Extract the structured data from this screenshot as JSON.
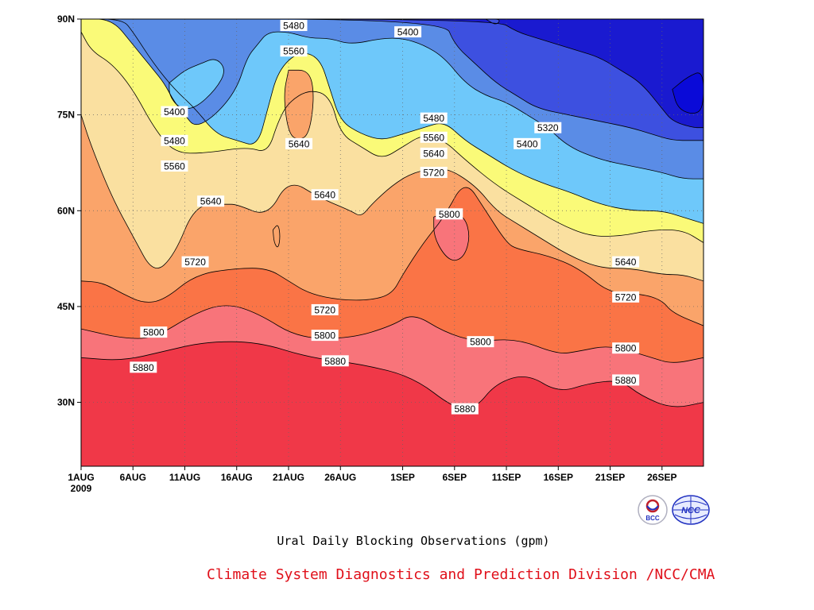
{
  "chart_data": {
    "type": "heatmap",
    "subtype": "filled-contour",
    "title": "Ural Daily Blocking Observations (gpm)",
    "credit": "Climate System Diagnostics and Prediction Division /NCC/CMA",
    "x_ticks": [
      {
        "day": 0,
        "label": "1AUG",
        "sub": "2009"
      },
      {
        "day": 5,
        "label": "6AUG"
      },
      {
        "day": 10,
        "label": "11AUG"
      },
      {
        "day": 15,
        "label": "16AUG"
      },
      {
        "day": 20,
        "label": "21AUG"
      },
      {
        "day": 25,
        "label": "26AUG"
      },
      {
        "day": 31,
        "label": "1SEP"
      },
      {
        "day": 36,
        "label": "6SEP"
      },
      {
        "day": 41,
        "label": "11SEP"
      },
      {
        "day": 46,
        "label": "16SEP"
      },
      {
        "day": 51,
        "label": "21SEP"
      },
      {
        "day": 56,
        "label": "26SEP"
      }
    ],
    "y_ticks": [
      {
        "lat": 90,
        "label": "90N"
      },
      {
        "lat": 75,
        "label": "75N"
      },
      {
        "lat": 60,
        "label": "60N"
      },
      {
        "lat": 45,
        "label": "45N"
      },
      {
        "lat": 30,
        "label": "30N"
      }
    ],
    "xlim_days": [
      0,
      60
    ],
    "ylim_lat": [
      20,
      90
    ],
    "grid": "dotted",
    "levels": [
      5240,
      5320,
      5400,
      5480,
      5560,
      5640,
      5720,
      5800,
      5880
    ],
    "colors": [
      "#1a1ad0",
      "#3d50e0",
      "#5a8ce6",
      "#6ec8fa",
      "#fafa78",
      "#fae0a0",
      "#faa46a",
      "#fa7446",
      "#f8747a",
      "#f03848"
    ],
    "boundaries": [
      {
        "level": 5880,
        "points": [
          [
            0,
            37
          ],
          [
            4,
            36.5
          ],
          [
            8,
            38
          ],
          [
            12,
            39.5
          ],
          [
            17,
            39.5
          ],
          [
            22,
            37
          ],
          [
            27,
            36
          ],
          [
            32,
            34
          ],
          [
            36,
            29
          ],
          [
            38,
            29
          ],
          [
            40,
            33
          ],
          [
            43,
            34.5
          ],
          [
            46,
            31.5
          ],
          [
            49,
            33
          ],
          [
            52,
            33.5
          ],
          [
            54,
            31
          ],
          [
            57,
            29
          ],
          [
            60,
            30
          ]
        ]
      },
      {
        "level": 5800,
        "points": [
          [
            0,
            41.5
          ],
          [
            4,
            40
          ],
          [
            7,
            40
          ],
          [
            11,
            44
          ],
          [
            14,
            45.5
          ],
          [
            17,
            44
          ],
          [
            21,
            40
          ],
          [
            26,
            40
          ],
          [
            30,
            42
          ],
          [
            32,
            44
          ],
          [
            35,
            41
          ],
          [
            38,
            39.5
          ],
          [
            42,
            40
          ],
          [
            46,
            37.5
          ],
          [
            48,
            38
          ],
          [
            51,
            39
          ],
          [
            55,
            37
          ],
          [
            57,
            36
          ],
          [
            60,
            37
          ]
        ]
      },
      {
        "level": 5720,
        "points": [
          [
            0,
            49
          ],
          [
            2,
            48.8
          ],
          [
            4,
            47
          ],
          [
            6,
            45.5
          ],
          [
            8,
            46
          ],
          [
            11,
            50
          ],
          [
            15,
            51
          ],
          [
            18,
            51
          ],
          [
            20,
            49
          ],
          [
            22,
            47
          ],
          [
            25,
            46
          ],
          [
            28,
            46
          ],
          [
            30,
            47
          ],
          [
            31,
            50
          ],
          [
            33,
            55
          ],
          [
            35,
            59
          ],
          [
            37,
            65
          ],
          [
            39,
            60
          ],
          [
            41,
            55
          ],
          [
            42,
            54
          ],
          [
            45,
            53
          ],
          [
            48,
            51
          ],
          [
            51,
            47
          ],
          [
            54,
            47
          ],
          [
            56,
            46
          ],
          [
            57,
            44
          ],
          [
            60,
            42
          ]
        ]
      },
      {
        "level": 5640,
        "points": [
          [
            0,
            75
          ],
          [
            1,
            70
          ],
          [
            3,
            62
          ],
          [
            5,
            56
          ],
          [
            7,
            50
          ],
          [
            9,
            53
          ],
          [
            11,
            61
          ],
          [
            14,
            61
          ],
          [
            15,
            61
          ],
          [
            18,
            59
          ],
          [
            20,
            65
          ],
          [
            23,
            62
          ],
          [
            26,
            60
          ],
          [
            27,
            59
          ],
          [
            28,
            61
          ],
          [
            30,
            64
          ],
          [
            32,
            66
          ],
          [
            35,
            67
          ],
          [
            38,
            64
          ],
          [
            40,
            60
          ],
          [
            42,
            58
          ],
          [
            44,
            56
          ],
          [
            47,
            53
          ],
          [
            50,
            51
          ],
          [
            53,
            51
          ],
          [
            56,
            50
          ],
          [
            58,
            50
          ],
          [
            60,
            49
          ]
        ]
      },
      {
        "level": 5560,
        "points": [
          [
            0,
            88
          ],
          [
            1,
            85
          ],
          [
            3,
            83
          ],
          [
            5,
            79
          ],
          [
            7,
            73
          ],
          [
            9,
            69
          ],
          [
            12,
            69
          ],
          [
            16,
            70
          ],
          [
            18,
            69
          ],
          [
            19,
            74
          ],
          [
            20,
            77
          ],
          [
            22,
            79
          ],
          [
            24,
            78
          ],
          [
            25,
            72
          ],
          [
            27,
            70
          ],
          [
            29,
            68
          ],
          [
            31,
            70
          ],
          [
            33,
            72
          ],
          [
            35,
            71
          ],
          [
            37,
            68
          ],
          [
            40,
            64
          ],
          [
            43,
            61
          ],
          [
            46,
            58
          ],
          [
            49,
            56
          ],
          [
            52,
            56
          ],
          [
            55,
            57
          ],
          [
            58,
            57
          ],
          [
            60,
            55
          ]
        ]
      },
      {
        "level": 5480,
        "points": [
          [
            0,
            90
          ],
          [
            4,
            90
          ],
          [
            5,
            88
          ],
          [
            7,
            83
          ],
          [
            9,
            79
          ],
          [
            11,
            76
          ],
          [
            13,
            72
          ],
          [
            15,
            71
          ],
          [
            17,
            70
          ],
          [
            18,
            76
          ],
          [
            19,
            82
          ],
          [
            21,
            85
          ],
          [
            23,
            84
          ],
          [
            24,
            79
          ],
          [
            25,
            74
          ],
          [
            27,
            72
          ],
          [
            29,
            71
          ],
          [
            31,
            72
          ],
          [
            33,
            73
          ],
          [
            35,
            74
          ],
          [
            37,
            71
          ],
          [
            39,
            69
          ],
          [
            42,
            66
          ],
          [
            45,
            64
          ],
          [
            47,
            63
          ],
          [
            50,
            61
          ],
          [
            53,
            60
          ],
          [
            56,
            60
          ],
          [
            58,
            59
          ],
          [
            60,
            58
          ]
        ]
      },
      {
        "level": 5400,
        "points": [
          [
            0,
            90
          ],
          [
            3,
            90
          ],
          [
            5,
            86
          ],
          [
            7,
            82
          ],
          [
            8,
            80
          ],
          [
            9,
            77
          ],
          [
            10,
            75
          ],
          [
            11,
            73
          ],
          [
            13,
            75
          ],
          [
            15,
            79
          ],
          [
            16,
            84
          ],
          [
            17,
            86
          ],
          [
            18,
            88
          ],
          [
            20,
            88
          ],
          [
            22,
            87
          ],
          [
            24,
            87
          ],
          [
            26,
            86
          ],
          [
            29,
            87
          ],
          [
            31,
            87
          ],
          [
            33,
            86
          ],
          [
            35,
            84
          ],
          [
            37,
            80
          ],
          [
            39,
            78
          ],
          [
            41,
            77
          ],
          [
            43,
            75
          ],
          [
            45,
            73
          ],
          [
            47,
            70
          ],
          [
            50,
            68
          ],
          [
            53,
            67
          ],
          [
            56,
            66
          ],
          [
            58,
            65
          ],
          [
            60,
            65
          ]
        ]
      },
      {
        "level": 5320,
        "points": [
          [
            0,
            90
          ],
          [
            35,
            90
          ],
          [
            36,
            86
          ],
          [
            38,
            83
          ],
          [
            40,
            80
          ],
          [
            42,
            78
          ],
          [
            44,
            76
          ],
          [
            47,
            75
          ],
          [
            50,
            74
          ],
          [
            53,
            73
          ],
          [
            55,
            72
          ],
          [
            57,
            71
          ],
          [
            59,
            71
          ],
          [
            60,
            71
          ]
        ]
      },
      {
        "level": 5240,
        "points": [
          [
            0,
            90
          ],
          [
            40,
            90
          ],
          [
            42,
            88
          ],
          [
            44,
            87
          ],
          [
            46,
            86
          ],
          [
            48,
            85
          ],
          [
            50,
            84
          ],
          [
            52,
            82
          ],
          [
            54,
            80
          ],
          [
            56,
            76
          ],
          [
            57,
            74
          ],
          [
            59,
            73
          ],
          [
            60,
            73
          ]
        ]
      }
    ],
    "islands": [
      {
        "level": 5880,
        "points": [
          [
            34,
            59
          ],
          [
            35.5,
            60
          ],
          [
            37,
            59
          ],
          [
            37.5,
            56
          ],
          [
            37,
            53
          ],
          [
            36,
            52
          ],
          [
            35,
            53
          ],
          [
            34,
            56
          ],
          [
            34,
            59
          ]
        ]
      },
      {
        "level": 5720,
        "points": [
          [
            20,
            82
          ],
          [
            22,
            82
          ],
          [
            22.5,
            78
          ],
          [
            22,
            72
          ],
          [
            21,
            71
          ],
          [
            20,
            72
          ],
          [
            19.5,
            78
          ],
          [
            20,
            82
          ]
        ]
      },
      {
        "level": 5480,
        "points": [
          [
            8.5,
            80
          ],
          [
            10,
            82
          ],
          [
            11.5,
            83
          ],
          [
            13,
            84
          ],
          [
            14,
            82
          ],
          [
            13,
            79
          ],
          [
            11,
            76
          ],
          [
            9.5,
            76
          ],
          [
            8.5,
            78
          ],
          [
            8.5,
            80
          ]
        ]
      },
      {
        "level": 5320,
        "points": [
          [
            39,
            90
          ],
          [
            40.5,
            90
          ],
          [
            40,
            89
          ],
          [
            39,
            90
          ]
        ]
      },
      {
        "level": 5160,
        "points": [
          [
            57,
            79
          ],
          [
            58.5,
            81
          ],
          [
            60,
            82
          ],
          [
            60,
            76
          ],
          [
            59,
            75
          ],
          [
            57.5,
            76
          ],
          [
            57,
            79
          ]
        ]
      },
      {
        "level": 5720,
        "points": [
          [
            18.5,
            57
          ],
          [
            19,
            58
          ],
          [
            19.2,
            56
          ],
          [
            19,
            54
          ],
          [
            18.6,
            55
          ],
          [
            18.5,
            57
          ]
        ]
      }
    ],
    "contour_labels": [
      {
        "day": 20.5,
        "lat": 89,
        "text": "5480"
      },
      {
        "day": 31.5,
        "lat": 88,
        "text": "5400"
      },
      {
        "day": 20.5,
        "lat": 85,
        "text": "5560"
      },
      {
        "day": 9,
        "lat": 75.5,
        "text": "5400"
      },
      {
        "day": 21,
        "lat": 70.5,
        "text": "5640"
      },
      {
        "day": 34,
        "lat": 74.5,
        "text": "5480"
      },
      {
        "day": 34,
        "lat": 71.5,
        "text": "5560"
      },
      {
        "day": 9,
        "lat": 71,
        "text": "5480"
      },
      {
        "day": 34,
        "lat": 69,
        "text": "5640"
      },
      {
        "day": 45,
        "lat": 73,
        "text": "5320"
      },
      {
        "day": 43,
        "lat": 70.5,
        "text": "5400"
      },
      {
        "day": 9,
        "lat": 67,
        "text": "5560"
      },
      {
        "day": 34,
        "lat": 66,
        "text": "5720"
      },
      {
        "day": 23.5,
        "lat": 62.5,
        "text": "5640"
      },
      {
        "day": 12.5,
        "lat": 61.5,
        "text": "5640"
      },
      {
        "day": 35.5,
        "lat": 59.5,
        "text": "5800"
      },
      {
        "day": 11,
        "lat": 52,
        "text": "5720"
      },
      {
        "day": 52.5,
        "lat": 52,
        "text": "5640"
      },
      {
        "day": 52.5,
        "lat": 46.5,
        "text": "5720"
      },
      {
        "day": 23.5,
        "lat": 44.5,
        "text": "5720"
      },
      {
        "day": 7,
        "lat": 41,
        "text": "5800"
      },
      {
        "day": 23.5,
        "lat": 40.5,
        "text": "5800"
      },
      {
        "day": 38.5,
        "lat": 39.5,
        "text": "5800"
      },
      {
        "day": 52.5,
        "lat": 38.5,
        "text": "5800"
      },
      {
        "day": 6,
        "lat": 35.5,
        "text": "5880"
      },
      {
        "day": 24.5,
        "lat": 36.5,
        "text": "5880"
      },
      {
        "day": 52.5,
        "lat": 33.5,
        "text": "5880"
      },
      {
        "day": 37,
        "lat": 29,
        "text": "5880"
      }
    ],
    "logos": [
      {
        "name": "bcc-logo",
        "text": "BCC",
        "color": "#c0202a"
      },
      {
        "name": "ncc-logo",
        "text": "NCC",
        "color": "#2030c0"
      }
    ]
  }
}
